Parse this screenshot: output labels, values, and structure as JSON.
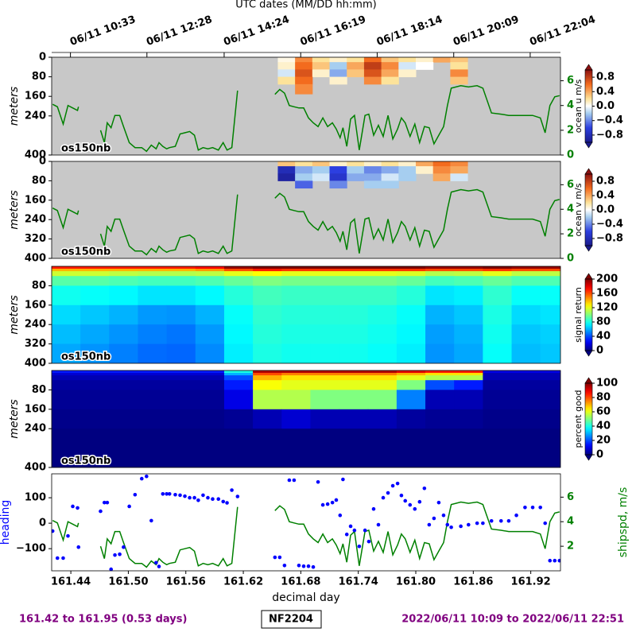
{
  "chart_data": [
    {
      "type": "heatmap",
      "top_xlabel": "UTC dates (MM/DD hh:mm)",
      "top_xticks": [
        {
          "value": 161.4396,
          "label": "06/11 10:33"
        },
        {
          "value": 161.5194,
          "label": "06/11 12:28"
        },
        {
          "value": 161.6,
          "label": "06/11 14:24"
        },
        {
          "value": 161.6799,
          "label": "06/11 16:19"
        },
        {
          "value": 161.7597,
          "label": "06/11 18:14"
        },
        {
          "value": 161.8396,
          "label": "06/11 20:09"
        },
        {
          "value": 161.9194,
          "label": "06/11 22:04"
        }
      ],
      "xlim": [
        161.42,
        161.951
      ],
      "ylabel": "meters",
      "ylim": [
        400,
        0
      ],
      "yticks": [
        0,
        80,
        160,
        240,
        400
      ],
      "y2lim": [
        0,
        7.9
      ],
      "y2ticks": [
        0,
        2,
        4,
        6
      ],
      "x_edges": [
        161.656,
        161.674,
        161.692,
        161.71,
        161.728,
        161.746,
        161.764,
        161.782,
        161.8,
        161.818,
        161.836,
        161.854
      ],
      "y_edges": [
        0,
        20,
        50,
        80,
        110,
        150
      ],
      "z": [
        [
          0.05,
          0.5,
          0.2,
          0.1,
          0.2,
          0.6,
          0.3,
          0.2,
          0.1,
          0.4,
          0.3
        ],
        [
          0.1,
          0.6,
          0.3,
          -0.2,
          0.4,
          0.8,
          0.5,
          -0.1,
          0.0,
          null,
          0.2
        ],
        [
          -0.1,
          0.7,
          0.1,
          -0.3,
          0.3,
          0.7,
          0.4,
          0.1,
          null,
          null,
          0.5
        ],
        [
          0.2,
          0.6,
          null,
          0.1,
          null,
          0.5,
          0.2,
          null,
          null,
          null,
          0.3
        ],
        [
          null,
          0.5,
          null,
          null,
          null,
          null,
          null,
          null,
          null,
          null,
          null
        ]
      ],
      "colormap": "diverging",
      "clim": [
        -1,
        1
      ],
      "cbar_label": "ocean u m/s",
      "cticks": [
        {
          "value": 0.8,
          "label": "0.8"
        },
        {
          "value": 0.4,
          "label": "0.4"
        },
        {
          "value": 0,
          "label": "0.0"
        },
        {
          "value": -0.4,
          "label": "−0.4"
        },
        {
          "value": -0.8,
          "label": "−0.8"
        }
      ],
      "annotation": "os150nb"
    },
    {
      "type": "heatmap",
      "xlim": [
        161.42,
        161.951
      ],
      "ylabel": "meters",
      "ylim": [
        400,
        0
      ],
      "yticks": [
        0,
        80,
        160,
        240,
        320,
        400
      ],
      "y2lim": [
        0,
        7.9
      ],
      "y2ticks": [
        0,
        2,
        4,
        6
      ],
      "x_edges": [
        161.656,
        161.674,
        161.692,
        161.71,
        161.728,
        161.746,
        161.764,
        161.782,
        161.8,
        161.818,
        161.836,
        161.854
      ],
      "y_edges": [
        0,
        20,
        50,
        80,
        110
      ],
      "z": [
        [
          0.3,
          0.2,
          0.3,
          0.1,
          0.2,
          0.1,
          0.2,
          0.1,
          0.4,
          0.6,
          0.5
        ],
        [
          -0.8,
          -0.3,
          -0.2,
          -0.6,
          -0.2,
          -0.4,
          -0.3,
          -0.2,
          0.1,
          0.5,
          0.4
        ],
        [
          -0.9,
          -0.2,
          -0.1,
          -0.7,
          -0.3,
          -0.3,
          -0.1,
          -0.2,
          null,
          0.4,
          -0.1
        ],
        [
          null,
          -0.5,
          null,
          -0.4,
          null,
          -0.2,
          -0.2,
          null,
          null,
          null,
          null
        ]
      ],
      "colormap": "diverging",
      "clim": [
        -1,
        1
      ],
      "cbar_label": "ocean v m/s",
      "cticks": [
        {
          "value": 0.8,
          "label": "0.8"
        },
        {
          "value": 0.4,
          "label": "0.4"
        },
        {
          "value": 0,
          "label": "0.0"
        },
        {
          "value": -0.4,
          "label": "−0.4"
        },
        {
          "value": -0.8,
          "label": "−0.8"
        }
      ],
      "annotation": "os150nb"
    },
    {
      "type": "heatmap",
      "xlim": [
        161.42,
        161.951
      ],
      "ylabel": "meters",
      "ylim": [
        400,
        0
      ],
      "yticks": [
        80,
        160,
        240,
        320,
        400
      ],
      "x_edges": [
        161.42,
        161.45,
        161.48,
        161.51,
        161.54,
        161.57,
        161.6,
        161.63,
        161.66,
        161.69,
        161.72,
        161.75,
        161.78,
        161.81,
        161.84,
        161.87,
        161.9,
        161.93,
        161.96
      ],
      "y_edges": [
        0,
        10,
        20,
        40,
        80,
        160,
        240,
        320,
        400
      ],
      "z": [
        [
          170,
          170,
          170,
          170,
          170,
          175,
          195,
          200,
          200,
          200,
          200,
          200,
          200,
          195,
          195,
          200,
          195,
          195
        ],
        [
          140,
          140,
          140,
          140,
          140,
          145,
          160,
          170,
          165,
          165,
          165,
          165,
          165,
          160,
          160,
          165,
          160,
          160
        ],
        [
          115,
          115,
          112,
          110,
          110,
          112,
          120,
          125,
          120,
          120,
          120,
          120,
          118,
          110,
          112,
          120,
          112,
          112
        ],
        [
          92,
          92,
          90,
          88,
          88,
          90,
          95,
          100,
          98,
          98,
          98,
          98,
          95,
          88,
          90,
          95,
          90,
          90
        ],
        [
          78,
          76,
          74,
          70,
          70,
          74,
          82,
          88,
          86,
          86,
          86,
          86,
          82,
          70,
          72,
          84,
          76,
          76
        ],
        [
          68,
          64,
          60,
          55,
          54,
          60,
          76,
          84,
          82,
          82,
          82,
          80,
          76,
          60,
          64,
          80,
          68,
          70
        ],
        [
          62,
          58,
          54,
          50,
          48,
          55,
          74,
          82,
          80,
          80,
          80,
          78,
          74,
          56,
          60,
          78,
          64,
          66
        ],
        [
          58,
          54,
          50,
          46,
          45,
          52,
          72,
          80,
          78,
          78,
          78,
          76,
          72,
          54,
          58,
          76,
          62,
          64
        ]
      ],
      "colormap": "jet",
      "clim": [
        0,
        200
      ],
      "cbar_label": "signal return",
      "cticks": [
        0,
        40,
        80,
        120,
        160,
        200
      ],
      "annotation": "os150nb"
    },
    {
      "type": "heatmap",
      "xlim": [
        161.42,
        161.951
      ],
      "ylabel": "meters",
      "ylim": [
        400,
        0
      ],
      "yticks": [
        80,
        160,
        240,
        400
      ],
      "x_edges": [
        161.42,
        161.45,
        161.48,
        161.51,
        161.54,
        161.57,
        161.6,
        161.63,
        161.66,
        161.69,
        161.72,
        161.75,
        161.78,
        161.81,
        161.84,
        161.87,
        161.9,
        161.93,
        161.96
      ],
      "y_edges": [
        0,
        10,
        20,
        40,
        80,
        160,
        240,
        320,
        400
      ],
      "z": [
        [
          15,
          15,
          15,
          15,
          15,
          15,
          40,
          95,
          95,
          95,
          95,
          95,
          90,
          85,
          85,
          10,
          10,
          10
        ],
        [
          8,
          8,
          8,
          8,
          8,
          8,
          30,
          80,
          75,
          75,
          75,
          75,
          70,
          65,
          65,
          5,
          5,
          5
        ],
        [
          5,
          5,
          5,
          5,
          5,
          5,
          20,
          70,
          65,
          65,
          65,
          65,
          60,
          55,
          55,
          5,
          5,
          5
        ],
        [
          3,
          3,
          3,
          3,
          3,
          3,
          15,
          62,
          60,
          60,
          60,
          60,
          50,
          20,
          15,
          3,
          3,
          3
        ],
        [
          2,
          2,
          2,
          2,
          2,
          2,
          10,
          55,
          55,
          50,
          50,
          50,
          25,
          5,
          5,
          2,
          2,
          2
        ],
        [
          1,
          1,
          1,
          1,
          1,
          1,
          2,
          5,
          8,
          5,
          5,
          5,
          3,
          2,
          2,
          1,
          1,
          1
        ],
        [
          0,
          0,
          0,
          0,
          0,
          0,
          0,
          0,
          0,
          0,
          0,
          0,
          0,
          0,
          0,
          0,
          0,
          0
        ],
        [
          0,
          0,
          0,
          0,
          0,
          0,
          0,
          0,
          0,
          0,
          0,
          0,
          0,
          0,
          0,
          0,
          0,
          0
        ]
      ],
      "colormap": "jet",
      "clim": [
        0,
        100
      ],
      "cbar_label": "percent good",
      "cticks": [
        0,
        20,
        40,
        60,
        80,
        100
      ],
      "annotation": "os150nb"
    },
    {
      "type": "combo",
      "xlim": [
        161.42,
        161.951
      ],
      "xlabel": "decimal day",
      "xticks": [
        161.44,
        {
          "value": 161.5,
          "label": "161.50"
        },
        161.56,
        161.62,
        161.68,
        161.74,
        {
          "value": 161.8,
          "label": "161.80"
        },
        161.86,
        161.92
      ],
      "ylim": [
        -187,
        194
      ],
      "yticks": [
        {
          "value": -100,
          "label": "−100"
        },
        0,
        100
      ],
      "y2lim": [
        0,
        7.9
      ],
      "y2ticks": [
        2,
        4,
        6
      ],
      "x": [
        161.421,
        161.426,
        161.432,
        161.437,
        161.442,
        161.447,
        161.448,
        161.455,
        161.471,
        161.475,
        161.478,
        161.482,
        161.486,
        161.491,
        161.495,
        161.501,
        161.507,
        161.514,
        161.519,
        161.524,
        161.529,
        161.532,
        161.536,
        161.54,
        161.543,
        161.549,
        161.554,
        161.559,
        161.564,
        161.569,
        161.573,
        161.578,
        161.583,
        161.588,
        161.594,
        161.599,
        161.603,
        161.608,
        161.614,
        161.63,
        161.653,
        161.658,
        161.663,
        161.668,
        161.673,
        161.678,
        161.683,
        161.688,
        161.693,
        161.698,
        161.703,
        161.708,
        161.713,
        161.717,
        161.721,
        161.724,
        161.728,
        161.732,
        161.736,
        161.741,
        161.747,
        161.751,
        161.756,
        161.761,
        161.766,
        161.771,
        161.776,
        161.781,
        161.785,
        161.789,
        161.794,
        161.799,
        161.804,
        161.809,
        161.814,
        161.819,
        161.824,
        161.829,
        161.833,
        161.837,
        161.847,
        161.855,
        161.864,
        161.87,
        161.879,
        161.889,
        161.897,
        161.905,
        161.914,
        161.922,
        161.93,
        161.935,
        161.94,
        161.945,
        161.95
      ],
      "series": [
        {
          "name": "heading",
          "color": "#0000ff",
          "kind": "scatter",
          "values": [
            -31,
            -137,
            -137,
            -50,
            66,
            60,
            -94,
            null,
            47,
            81,
            81,
            -181,
            -125,
            -122,
            -94,
            66,
            112,
            175,
            184,
            10,
            -155,
            -170,
            115,
            115,
            115,
            112,
            110,
            106,
            100,
            100,
            90,
            110,
            100,
            95,
            95,
            85,
            80,
            130,
            105,
            null,
            -134,
            -134,
            -166,
            169,
            169,
            -166,
            -169,
            -169,
            -172,
            162,
            72,
            75,
            81,
            91,
            31,
            172,
            -44,
            -12,
            -28,
            -91,
            -28,
            -72,
            56,
            -6,
            100,
            119,
            147,
            156,
            109,
            88,
            72,
            56,
            84,
            137,
            -6,
            19,
            81,
            31,
            -6,
            -16,
            -12,
            -6,
            0,
            0,
            9,
            9,
            9,
            31,
            62,
            62,
            62,
            0,
            -147,
            -147,
            -147
          ]
        },
        {
          "name": "shipspd, m/s",
          "color": "#008000",
          "kind": "line",
          "axis": "y2",
          "values": [
            4.1,
            3.9,
            2.5,
            4.0,
            3.8,
            3.6,
            3.9,
            null,
            2.0,
            1.0,
            2.6,
            2.2,
            3.2,
            3.2,
            2.3,
            1.0,
            0.6,
            0.6,
            0.3,
            0.8,
            0.5,
            1.0,
            0.7,
            0.5,
            0.6,
            0.7,
            1.7,
            1.8,
            1.9,
            1.6,
            0.4,
            0.6,
            0.5,
            0.6,
            0.4,
            1.0,
            0.4,
            0.6,
            5.2,
            null,
            4.9,
            5.3,
            5.0,
            4.0,
            3.9,
            3.8,
            3.8,
            3.0,
            2.6,
            2.3,
            3.0,
            2.3,
            2.6,
            2.1,
            1.4,
            2.2,
            0.7,
            2.9,
            3.2,
            0.4,
            3.2,
            3.3,
            1.6,
            2.4,
            1.5,
            3.2,
            1.3,
            2.1,
            3.0,
            2.6,
            1.5,
            2.5,
            1.0,
            2.3,
            2.2,
            0.9,
            1.6,
            2.3,
            4.0,
            5.4,
            5.6,
            5.5,
            5.6,
            5.4,
            3.4,
            3.3,
            3.2,
            3.2,
            3.2,
            3.2,
            3.0,
            1.8,
            4.0,
            4.7,
            4.8
          ]
        }
      ]
    }
  ],
  "footer": {
    "left": "161.42 to 161.95 (0.53 days)",
    "center": "NF2204",
    "right": "2022/06/11 10:09 to 2022/06/11 22:51"
  }
}
